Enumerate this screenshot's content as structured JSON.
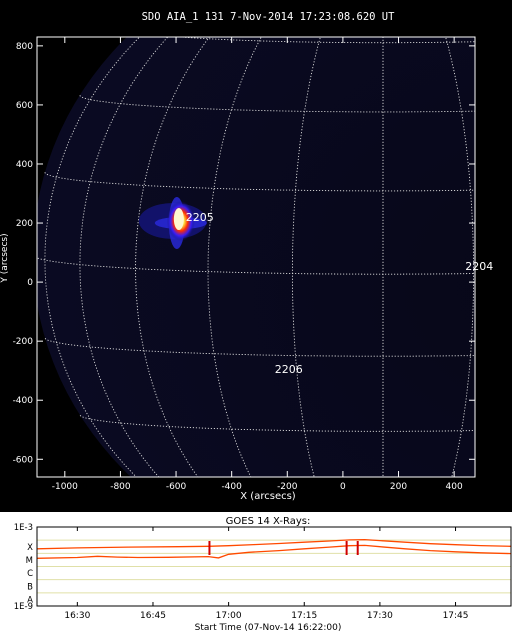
{
  "chart_data": [
    {
      "type": "heatmap",
      "title": "SDO AIA_1 131  7-Nov-2014 17:23:08.620  UT",
      "xlabel": "X (arcsecs)",
      "ylabel": "Y (arcsecs)",
      "xlim": [
        -1100,
        475
      ],
      "ylim": [
        -660,
        830
      ],
      "xticks": [
        "-1000",
        "-800",
        "-600",
        "-400",
        "-200",
        "0",
        "200",
        "400"
      ],
      "yticks": [
        "800",
        "600",
        "400",
        "200",
        "0",
        "-200",
        "-400",
        "-600"
      ],
      "xtick_values": [
        -1000,
        -800,
        -600,
        -400,
        -200,
        0,
        200,
        400
      ],
      "ytick_values": [
        800,
        600,
        400,
        200,
        0,
        -200,
        -400,
        -600
      ],
      "grid": "heliographic lat/lon grid, dotted white",
      "annotations": [
        {
          "label": "2205",
          "x": -565,
          "y": 220
        },
        {
          "label": "2204",
          "x": 440,
          "y": 55
        },
        {
          "label": "2206",
          "x": -245,
          "y": -295
        }
      ],
      "bright_region": {
        "x": -590,
        "y": 200,
        "colormap": "blue-red-yellow-white"
      }
    },
    {
      "type": "line",
      "title": "GOES 14 X-Rays:",
      "xlabel": "Start Time (07-Nov-14 16:22:00)",
      "yscale": "log",
      "ylim": [
        1e-09,
        0.001
      ],
      "ytick_labels": [
        "1E-3",
        "X",
        "M",
        "C",
        "B",
        "A",
        "1E-9"
      ],
      "xticks": [
        "16:30",
        "16:45",
        "17:00",
        "17:15",
        "17:30",
        "17:45"
      ],
      "xtick_minutes": [
        510,
        525,
        540,
        555,
        570,
        585
      ],
      "xlim_minutes": [
        502,
        596
      ],
      "series": [
        {
          "color": "#ff4a00",
          "points": [
            [
              502,
              2.2e-05
            ],
            [
              510,
              2.6e-05
            ],
            [
              520,
              3e-05
            ],
            [
              530,
              3.2e-05
            ],
            [
              536,
              3.4e-05
            ],
            [
              540,
              3.8e-05
            ],
            [
              545,
              4.6e-05
            ],
            [
              550,
              5.6e-05
            ],
            [
              555,
              7e-05
            ],
            [
              560,
              8.6e-05
            ],
            [
              564,
              0.000105
            ],
            [
              567,
              0.00011
            ],
            [
              570,
              9.2e-05
            ],
            [
              575,
              7e-05
            ],
            [
              580,
              5.4e-05
            ],
            [
              585,
              4.5e-05
            ],
            [
              590,
              3.9e-05
            ],
            [
              596,
              3.4e-05
            ]
          ]
        },
        {
          "color": "#ff4a00",
          "points": [
            [
              502,
              4.2e-06
            ],
            [
              510,
              4.8e-06
            ],
            [
              514,
              6e-06
            ],
            [
              518,
              5.2e-06
            ],
            [
              522,
              4.8e-06
            ],
            [
              528,
              5e-06
            ],
            [
              536,
              5.6e-06
            ],
            [
              538,
              4.5e-06
            ],
            [
              540,
              8.5e-06
            ],
            [
              544,
              1.2e-05
            ],
            [
              550,
              1.6e-05
            ],
            [
              555,
              2.2e-05
            ],
            [
              560,
              3e-05
            ],
            [
              564,
              3.8e-05
            ],
            [
              567,
              4e-05
            ],
            [
              570,
              3.2e-05
            ],
            [
              575,
              2.2e-05
            ],
            [
              580,
              1.6e-05
            ],
            [
              585,
              1.3e-05
            ],
            [
              590,
              1.1e-05
            ],
            [
              596,
              9.5e-06
            ]
          ]
        }
      ],
      "flare_markers_minutes": [
        536.2,
        563.4,
        565.6
      ]
    }
  ]
}
